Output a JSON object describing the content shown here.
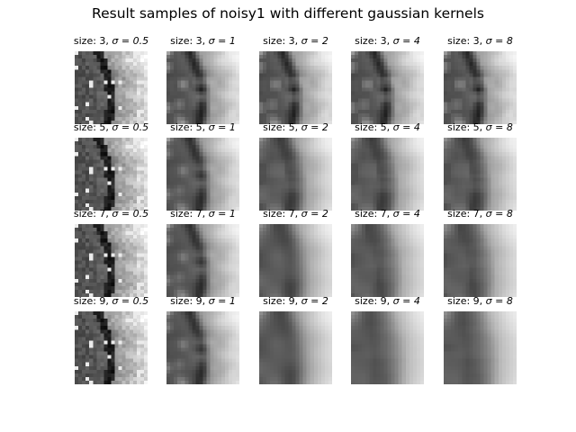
{
  "figure": {
    "title": "Result samples of noisy1 with different gaussian kernels"
  },
  "panels": [
    {
      "size_text": "size: 3, ",
      "sigma_text": "σ = 0.5",
      "size": 3,
      "sigma": 0.5
    },
    {
      "size_text": "size: 3, ",
      "sigma_text": "σ = 1",
      "size": 3,
      "sigma": 1
    },
    {
      "size_text": "size: 3, ",
      "sigma_text": "σ = 2",
      "size": 3,
      "sigma": 2
    },
    {
      "size_text": "size: 3, ",
      "sigma_text": "σ = 4",
      "size": 3,
      "sigma": 4
    },
    {
      "size_text": "size: 3, ",
      "sigma_text": "σ = 8",
      "size": 3,
      "sigma": 8
    },
    {
      "size_text": "size: 5, ",
      "sigma_text": "σ = 0.5",
      "size": 5,
      "sigma": 0.5
    },
    {
      "size_text": "size: 5, ",
      "sigma_text": "σ = 1",
      "size": 5,
      "sigma": 1
    },
    {
      "size_text": "size: 5, ",
      "sigma_text": "σ = 2",
      "size": 5,
      "sigma": 2
    },
    {
      "size_text": "size: 5, ",
      "sigma_text": "σ = 4",
      "size": 5,
      "sigma": 4
    },
    {
      "size_text": "size: 5, ",
      "sigma_text": "σ = 8",
      "size": 5,
      "sigma": 8
    },
    {
      "size_text": "size: 7, ",
      "sigma_text": "σ = 0.5",
      "size": 7,
      "sigma": 0.5
    },
    {
      "size_text": "size: 7, ",
      "sigma_text": "σ = 1",
      "size": 7,
      "sigma": 1
    },
    {
      "size_text": "size: 7, ",
      "sigma_text": "σ = 2",
      "size": 7,
      "sigma": 2
    },
    {
      "size_text": "size: 7, ",
      "sigma_text": "σ = 4",
      "size": 7,
      "sigma": 4
    },
    {
      "size_text": "size: 7, ",
      "sigma_text": "σ = 8",
      "size": 7,
      "sigma": 8
    },
    {
      "size_text": "size: 9, ",
      "sigma_text": "σ = 0.5",
      "size": 9,
      "sigma": 0.5
    },
    {
      "size_text": "size: 9, ",
      "sigma_text": "σ = 1",
      "size": 9,
      "sigma": 1
    },
    {
      "size_text": "size: 9, ",
      "sigma_text": "σ = 2",
      "size": 9,
      "sigma": 2
    },
    {
      "size_text": "size: 9, ",
      "sigma_text": "σ = 4",
      "size": 9,
      "sigma": 4
    },
    {
      "size_text": "size: 9, ",
      "sigma_text": "σ = 8",
      "size": 9,
      "sigma": 8
    }
  ]
}
